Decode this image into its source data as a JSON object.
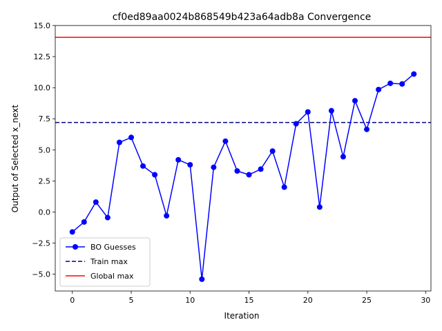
{
  "chart_data": {
    "type": "line",
    "title": "cf0ed89aa0024b868549b423a64adb8a Convergence",
    "xlabel": "Iteration",
    "ylabel": "Output of Selected x_next",
    "xlim": [
      -1.45,
      30.45
    ],
    "ylim": [
      -6.35,
      15.0
    ],
    "x_ticks": [
      0,
      5,
      10,
      15,
      20,
      25,
      30
    ],
    "y_ticks": [
      -5.0,
      -2.5,
      0.0,
      2.5,
      5.0,
      7.5,
      10.0,
      12.5,
      15.0
    ],
    "x_tick_labels": [
      "0",
      "5",
      "10",
      "15",
      "20",
      "25",
      "30"
    ],
    "y_tick_labels": [
      "−5.0",
      "−2.5",
      "0.0",
      "2.5",
      "5.0",
      "7.5",
      "10.0",
      "12.5",
      "15.0"
    ],
    "grid": false,
    "legend_position": "lower-left",
    "series": [
      {
        "name": "BO Guesses",
        "style": "line-marker",
        "color": "#0000ff",
        "x": [
          0,
          1,
          2,
          3,
          4,
          5,
          6,
          7,
          8,
          9,
          10,
          11,
          12,
          13,
          14,
          15,
          16,
          17,
          18,
          19,
          20,
          21,
          22,
          23,
          24,
          25,
          26,
          27,
          28,
          29
        ],
        "values": [
          -1.6,
          -0.8,
          0.8,
          -0.45,
          5.6,
          6.0,
          3.7,
          3.0,
          -0.3,
          4.2,
          3.8,
          -5.4,
          3.6,
          5.7,
          3.3,
          3.0,
          3.45,
          4.9,
          2.0,
          7.1,
          8.05,
          0.4,
          8.15,
          4.45,
          8.95,
          6.65,
          9.85,
          10.35,
          10.3,
          11.1
        ]
      },
      {
        "name": "Train max",
        "style": "hline-dashed",
        "color": "#000080",
        "y": 7.2
      },
      {
        "name": "Global max",
        "style": "hline-solid",
        "color": "#ff0000",
        "y": 14.05
      }
    ]
  }
}
